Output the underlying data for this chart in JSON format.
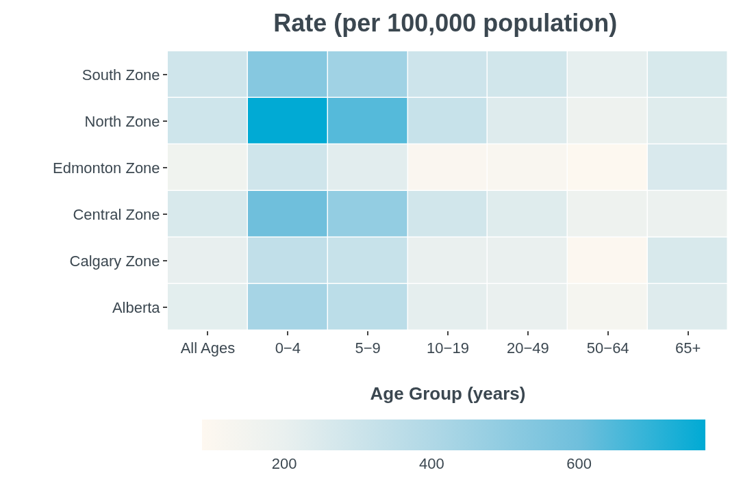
{
  "chart_data": {
    "type": "heatmap",
    "title": "Rate (per 100,000 population)",
    "xlabel": "Age Group (years)",
    "categories": [
      "All Ages",
      "0−4",
      "5−9",
      "10−19",
      "20−49",
      "50−64",
      "65+"
    ],
    "y_categories": [
      "South Zone",
      "North Zone",
      "Edmonton Zone",
      "Central Zone",
      "Calgary Zone",
      "Alberta"
    ],
    "cells": [
      [
        290,
        530,
        450,
        300,
        285,
        210,
        262
      ],
      [
        295,
        770,
        640,
        320,
        240,
        175,
        235
      ],
      [
        165,
        290,
        225,
        110,
        115,
        95,
        255
      ],
      [
        260,
        600,
        490,
        285,
        235,
        175,
        185
      ],
      [
        205,
        340,
        320,
        195,
        195,
        100,
        260
      ],
      [
        220,
        430,
        360,
        215,
        195,
        135,
        240
      ]
    ],
    "clim": [
      88,
      771
    ],
    "cticks": [
      200,
      400,
      600
    ]
  }
}
